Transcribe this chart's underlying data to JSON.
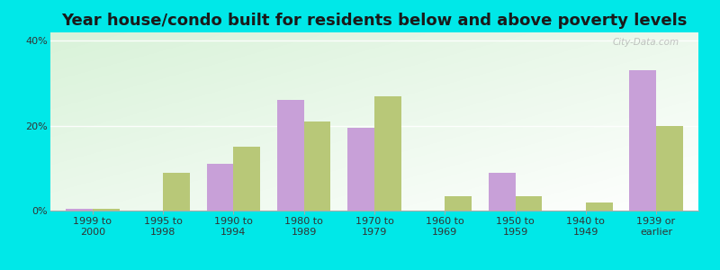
{
  "title": "Year house/condo built for residents below and above poverty levels",
  "categories": [
    "1999 to\n2000",
    "1995 to\n1998",
    "1990 to\n1994",
    "1980 to\n1989",
    "1970 to\n1979",
    "1960 to\n1969",
    "1950 to\n1959",
    "1940 to\n1949",
    "1939 or\nearlier"
  ],
  "below_poverty": [
    0.5,
    0,
    11,
    26,
    19.5,
    0,
    9,
    0,
    33
  ],
  "above_poverty": [
    0.5,
    9,
    15,
    21,
    27,
    3.5,
    3.5,
    2,
    20
  ],
  "below_color": "#c8a0d8",
  "above_color": "#b8c878",
  "background_color": "#00e8e8",
  "ylim": [
    0,
    42
  ],
  "yticks": [
    0,
    20,
    40
  ],
  "title_fontsize": 13,
  "tick_fontsize": 8,
  "legend_fontsize": 9,
  "bar_width": 0.38
}
